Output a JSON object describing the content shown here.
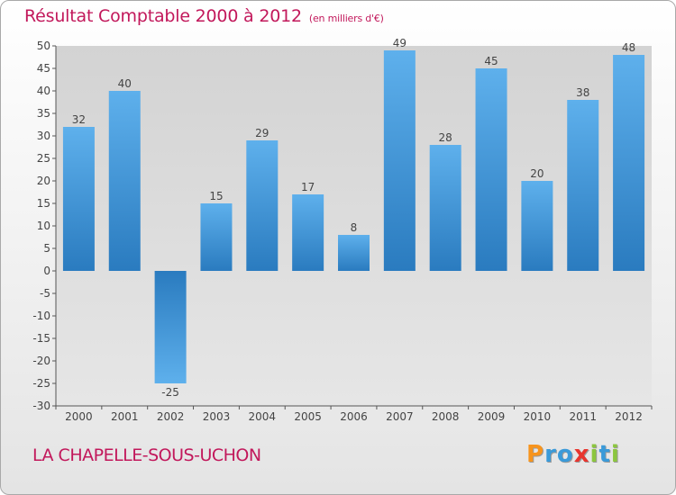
{
  "chart_data": {
    "type": "bar",
    "title": "Résultat Comptable 2000 à 2012",
    "subtitle": "(en milliers d'€)",
    "categories": [
      "2000",
      "2001",
      "2002",
      "2003",
      "2004",
      "2005",
      "2006",
      "2007",
      "2008",
      "2009",
      "2010",
      "2011",
      "2012"
    ],
    "values": [
      32,
      40,
      -25,
      15,
      29,
      17,
      8,
      49,
      28,
      45,
      20,
      38,
      48
    ],
    "ylim": [
      -30,
      50
    ],
    "ytick_step": 5,
    "grid": false,
    "xlabel": "",
    "ylabel": ""
  },
  "footer": {
    "place": "LA CHAPELLE-SOUS-UCHON",
    "brand_letters": [
      {
        "ch": "P",
        "color": "#f7941d"
      },
      {
        "ch": "r",
        "color": "#3a9ad9"
      },
      {
        "ch": "o",
        "color": "#3a9ad9"
      },
      {
        "ch": "x",
        "color": "#e8352e"
      },
      {
        "ch": "i",
        "color": "#8cc63f"
      },
      {
        "ch": "t",
        "color": "#3a9ad9"
      },
      {
        "ch": "i",
        "color": "#8cc63f"
      }
    ]
  },
  "colors": {
    "accent": "#c2185b",
    "bar_top": "#5eb0ec",
    "bar_bottom": "#2a7bbf",
    "axis": "#555555",
    "plot_bg": "#dcdcdc"
  }
}
